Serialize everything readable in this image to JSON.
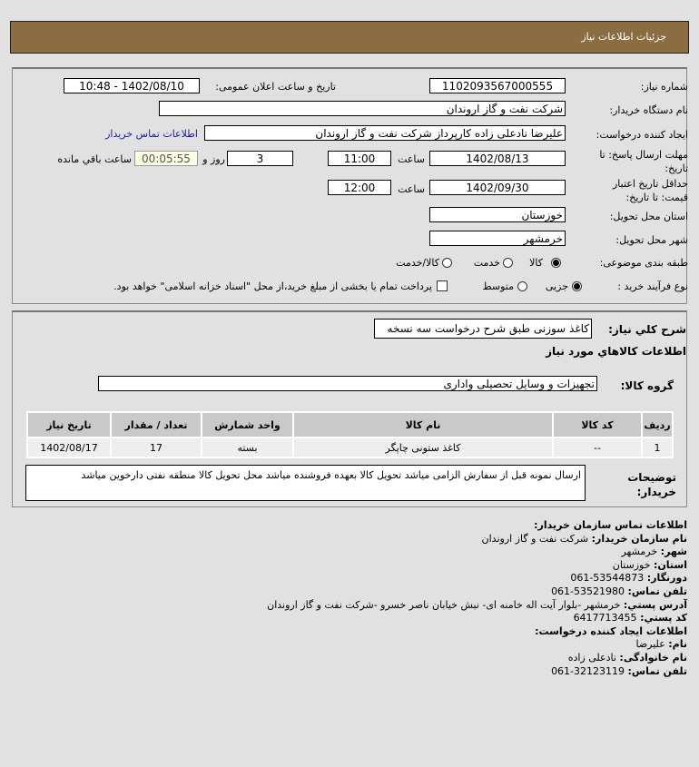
{
  "header": {
    "title": "جزئیات اطلاعات نیاز"
  },
  "form": {
    "need_number_label": "شماره نیاز:",
    "need_number": "1102093567000555",
    "announce_label": "تاریخ و ساعت اعلان عمومی:",
    "announce_value": "1402/08/10 - 10:48",
    "buyer_label": "نام دستگاه خریدار:",
    "buyer": "شرکت نفت و گاز اروندان",
    "creator_label": "ایجاد کننده درخواست:",
    "creator": "علیرضا نادعلی زاده کارپرداز شرکت نفت و گاز اروندان",
    "contact_link": "اطلاعات تماس خریدار",
    "deadline_label": "مهلت ارسال پاسخ: تا تاریخ:",
    "deadline_date": "1402/08/13",
    "time_label": "ساعت",
    "deadline_time": "11:00",
    "days": "3",
    "days_label": "روز و",
    "remaining": "00:05:55",
    "remaining_label": "ساعت باقي مانده",
    "validity_label": "حداقل تاریخ اعتبار قیمت: تا تاریخ:",
    "validity_date": "1402/09/30",
    "validity_time": "12:00",
    "province_label": "استان محل تحویل:",
    "province": "خوزستان",
    "city_label": "شهر محل تحویل:",
    "city": "خرمشهر",
    "category_label": "طبقه بندی موضوعی:",
    "category_options": [
      "کالا",
      "خدمت",
      "کالا/خدمت"
    ],
    "category_selected": "کالا",
    "process_label": "نوع فرآیند خرید :",
    "process_options": [
      "جزیی",
      "متوسط"
    ],
    "process_selected": "جزیی",
    "payment_note": "پرداخت تمام یا بخشی از مبلغ خرید،از محل \"اسناد خزانه اسلامی\" خواهد بود."
  },
  "details": {
    "summary_label": "شرح کلي نیاز:",
    "summary": "کاغذ سوزنی طبق شرح درخواست سه نسخه",
    "goods_title": "اطلاعات کالاهاي مورد نیاز",
    "group_label": "گروه کالا:",
    "group": "تجهیزات و وسایل تحصیلی واداری",
    "table": {
      "headers": [
        "ردیف",
        "کد کالا",
        "نام کالا",
        "واحد شمارش",
        "تعداد / مقدار",
        "تاریخ نیاز"
      ],
      "rows": [
        [
          "1",
          "--",
          "کاغذ ستونی چاپگر",
          "بسته",
          "17",
          "1402/08/17"
        ]
      ]
    },
    "notes_label": "توضیحات خریدار:",
    "notes": "ارسال نمونه قبل از سفارش الزامی میاشد تحویل کالا بعهده فروشنده میاشد محل تحویل کالا منطقه نفتی دارخوین میاشد"
  },
  "contact": {
    "title": "اطلاعات تماس سازمان خریدار:",
    "org_label": "نام سازمان خریدار:",
    "org": "شرکت نفت و گاز اروندان",
    "city_label": "شهر:",
    "city": "خرمشهر",
    "province_label": "استان:",
    "province": "خوزستان",
    "fax_label": "دورنگار:",
    "fax": "061-53544873",
    "phone_label": "تلفن تماس:",
    "phone": "061-53521980",
    "address_label": "آدرس پستي:",
    "address": "خرمشهر -بلوار آیت اله خامنه ای- نبش خیابان ناصر خسرو -شرکت نفت و گاز اروندان",
    "postal_label": "کد پستي:",
    "postal": "6417713455",
    "creator_title": "اطلاعات ایجاد کننده درخواست:",
    "name_label": "نام:",
    "name": "علیرضا",
    "family_label": "نام خانوادگی:",
    "family": "نادعلی زاده",
    "creator_phone_label": "تلفن تماس:",
    "creator_phone": "061-32123119"
  }
}
